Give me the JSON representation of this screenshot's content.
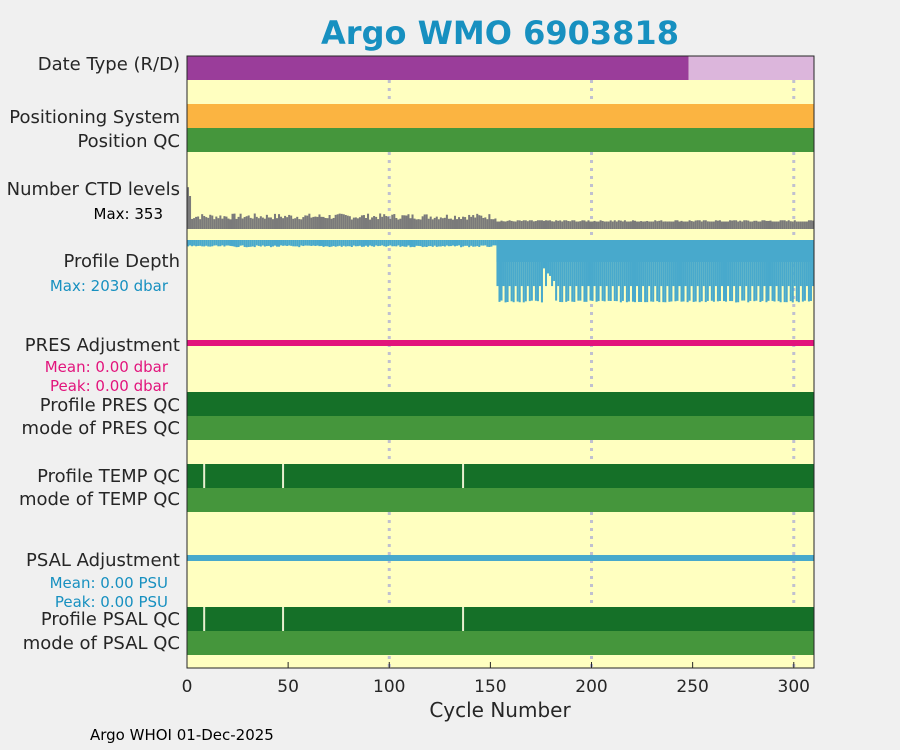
{
  "colors": {
    "panel_bg": "#ffffc0",
    "title": "#1790c0",
    "grid": "#c0c0d0",
    "data_type_real": "#9a3d9a",
    "data_type_delayed": "#dcb6dc",
    "positioning": "#fbb441",
    "qc_good": "#45963c",
    "qc_dark": "#157028",
    "ctd_levels": "#7a7a7a",
    "profile_depth": "#48a9cc",
    "pres_adj": "#e2147c",
    "psal_adj": "#48a9cc",
    "cyan_text": "#1790c0",
    "magenta_text": "#e2147c"
  },
  "title": "Argo WMO 6903818",
  "rows": {
    "date_type": "Date Type (R/D)",
    "positioning": "Positioning System",
    "position_qc": "Position QC",
    "ctd_levels": "Number CTD levels",
    "ctd_max": "Max: 353",
    "profile_depth": "Profile Depth",
    "depth_max": "Max: 2030 dbar",
    "pres_adj": "PRES Adjustment",
    "pres_mean": "Mean: 0.00 dbar",
    "pres_peak": "Peak: 0.00 dbar",
    "profile_pres_qc": "Profile PRES QC",
    "mode_pres_qc": "mode of PRES QC",
    "profile_temp_qc": "Profile TEMP QC",
    "mode_temp_qc": "mode of TEMP QC",
    "psal_adj": "PSAL Adjustment",
    "psal_mean": "Mean: 0.00 PSU",
    "psal_peak": "Peak: 0.00 PSU",
    "profile_psal_qc": "Profile PSAL QC",
    "mode_psal_qc": "mode of PSAL QC"
  },
  "footer": "Argo WHOI 01-Dec-2025",
  "chart_data": {
    "type": "bar",
    "title": "Argo WMO 6903818",
    "xlabel": "Cycle Number",
    "xlim": [
      0,
      310
    ],
    "xticks": [
      0,
      50,
      100,
      150,
      200,
      250,
      300
    ],
    "grid_x": [
      100,
      200,
      300
    ],
    "date_type": {
      "real_time_until_cycle": 248,
      "delayed_after": 248,
      "last_cycle": 310
    },
    "positioning_system": "single system all cycles",
    "position_qc": "good (1) all cycles",
    "ctd_levels_max": 353,
    "ctd_levels_segments": [
      {
        "from": 0,
        "to": 153,
        "typical": 100,
        "min": 70,
        "max": 353
      },
      {
        "from": 153,
        "to": 310,
        "typical": 64,
        "min": 60,
        "max": 70
      }
    ],
    "profile_depth_max_dbar": 2030,
    "profile_depth_segments": [
      {
        "from": 0,
        "to": 153,
        "typical_dbar": 200,
        "max_dbar": 230
      },
      {
        "from": 153,
        "to": 310,
        "typical_dbar": 1980,
        "min_dbar": 900,
        "max_dbar": 2030
      }
    ],
    "pres_adjustment": {
      "mean_dbar": 0.0,
      "peak_dbar": 0.0
    },
    "psal_adjustment": {
      "mean_psu": 0.0,
      "peak_psu": 0.0
    },
    "profile_pres_qc": "A all cycles",
    "mode_pres_qc": "1 all cycles",
    "profile_temp_qc_exceptions_at_cycles": [
      8,
      47,
      136
    ],
    "mode_temp_qc": "1 all cycles",
    "profile_psal_qc_exceptions_at_cycles": [
      8,
      47,
      136
    ],
    "mode_psal_qc": "1 all cycles"
  }
}
